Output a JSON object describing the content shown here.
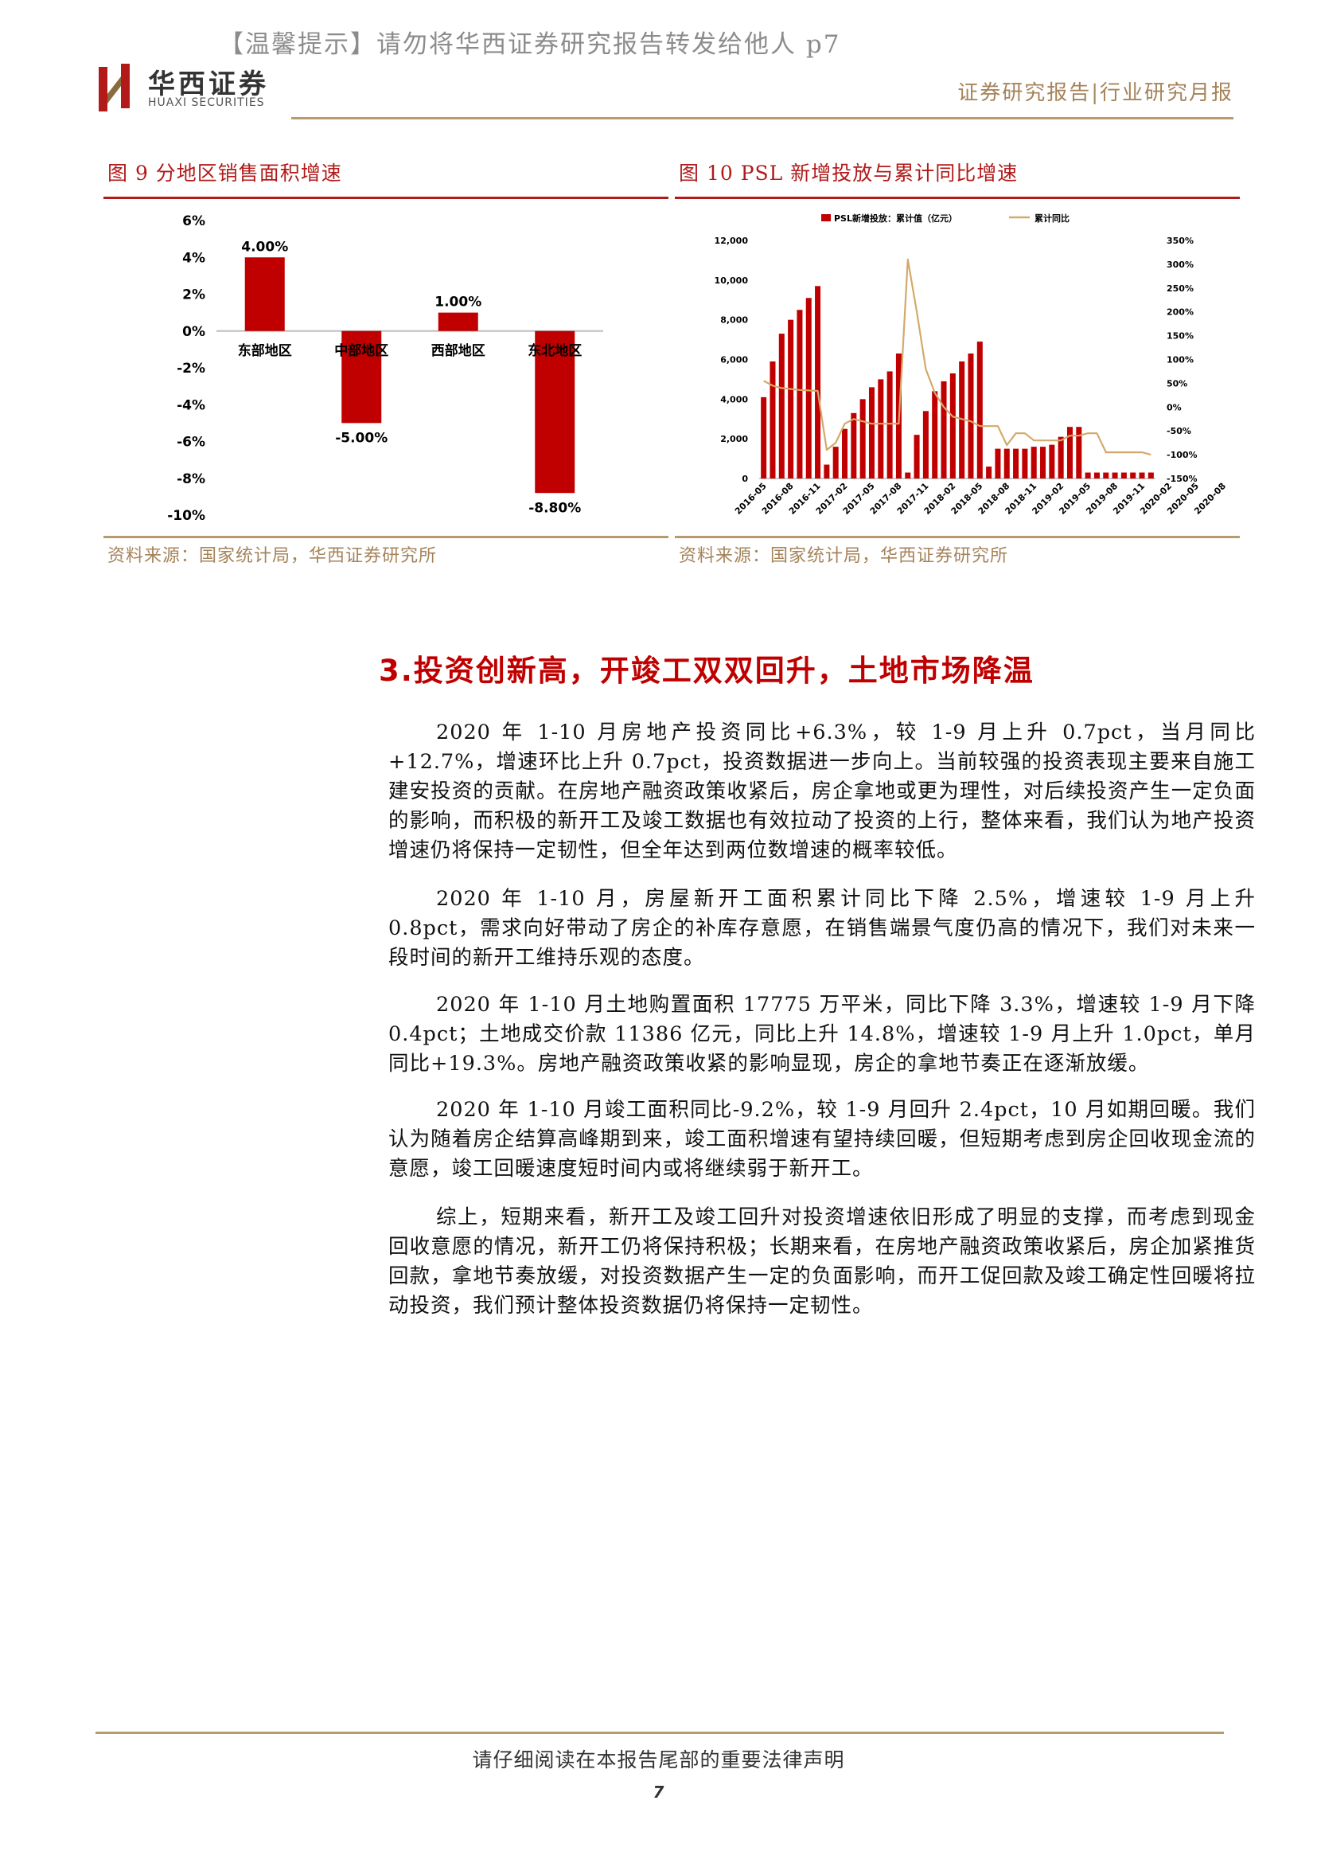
{
  "header": {
    "notice": "【温馨提示】请勿将华西证券研究报告转发给他人 p7",
    "logo_cn": "华西证券",
    "logo_en": "HUAXI SECURITIES",
    "report_type": "证券研究报告|行业研究月报"
  },
  "figures": [
    {
      "title": "图 9   分地区销售面积增速",
      "source": "资料来源：国家统计局，华西证券研究所"
    },
    {
      "title": "图 10   PSL 新增投放与累计同比增速",
      "source": "资料来源：国家统计局，华西证券研究所"
    }
  ],
  "chart_data": [
    {
      "type": "bar",
      "categories": [
        "东部地区",
        "中部地区",
        "西部地区",
        "东北地区"
      ],
      "values": [
        4.0,
        -5.0,
        1.0,
        -8.8
      ],
      "data_labels": [
        "4.00%",
        "-5.00%",
        "1.00%",
        "-8.80%"
      ],
      "ylim": [
        -10,
        6
      ],
      "yticks": [
        "6%",
        "4%",
        "2%",
        "0%",
        "-2%",
        "-4%",
        "-6%",
        "-8%",
        "-10%"
      ],
      "bar_color": "#c00000",
      "grid": false
    },
    {
      "type": "bar+line",
      "legend": [
        "PSL新增投放：累计值（亿元）",
        "累计同比"
      ],
      "legend_position": "top",
      "x_tick_labels": [
        "2016-05",
        "2016-08",
        "2016-11",
        "2017-02",
        "2017-05",
        "2017-08",
        "2017-11",
        "2018-02",
        "2018-05",
        "2018-08",
        "2018-11",
        "2019-02",
        "2019-05",
        "2019-08",
        "2019-11",
        "2020-02",
        "2020-05",
        "2020-08"
      ],
      "bar_series": {
        "name": "PSL新增投放：累计值（亿元）",
        "color": "#c00000",
        "values": [
          4100,
          5900,
          7300,
          8000,
          8500,
          9100,
          9700,
          700,
          1600,
          2500,
          3300,
          4000,
          4600,
          5000,
          5400,
          6300,
          300,
          2200,
          3400,
          4400,
          4900,
          5300,
          5900,
          6300,
          6900,
          600,
          1500,
          1500,
          1500,
          1500,
          1600,
          1600,
          1700,
          2100,
          2600,
          2600,
          300,
          300,
          300,
          300,
          300,
          300,
          300,
          300
        ],
        "ylim": [
          0,
          12000
        ],
        "yticks": [
          "12,000",
          "10,000",
          "8,000",
          "6,000",
          "4,000",
          "2,000",
          "0"
        ]
      },
      "line_series": {
        "name": "累计同比",
        "color": "#d4a96a",
        "values": [
          55,
          45,
          40,
          38,
          36,
          35,
          34,
          -90,
          -75,
          -35,
          -25,
          -30,
          -35,
          -35,
          -35,
          -35,
          310,
          200,
          80,
          30,
          0,
          -20,
          -25,
          -30,
          -40,
          -40,
          -40,
          -80,
          -55,
          -55,
          -70,
          -70,
          -70,
          -70,
          -60,
          -60,
          -55,
          -55,
          -95,
          -95,
          -95,
          -95,
          -95,
          -100
        ],
        "ylim": [
          -150,
          350
        ],
        "yticks": [
          "350%",
          "300%",
          "250%",
          "200%",
          "150%",
          "100%",
          "50%",
          "0%",
          "-50%",
          "-100%",
          "-150%"
        ]
      }
    }
  ],
  "section": {
    "heading": "3.投资创新高，开竣工双双回升，土地市场降温",
    "paragraphs": [
      "2020 年 1-10 月房地产投资同比+6.3%，较 1-9 月上升 0.7pct，当月同比+12.7%，增速环比上升 0.7pct，投资数据进一步向上。当前较强的投资表现主要来自施工建安投资的贡献。在房地产融资政策收紧后，房企拿地或更为理性，对后续投资产生一定负面的影响，而积极的新开工及竣工数据也有效拉动了投资的上行，整体来看，我们认为地产投资增速仍将保持一定韧性，但全年达到两位数增速的概率较低。",
      "2020 年 1-10 月，房屋新开工面积累计同比下降 2.5%，增速较 1-9 月上升 0.8pct，需求向好带动了房企的补库存意愿，在销售端景气度仍高的情况下，我们对未来一段时间的新开工维持乐观的态度。",
      "2020 年 1-10 月土地购置面积 17775 万平米，同比下降 3.3%，增速较 1-9 月下降 0.4pct；土地成交价款 11386 亿元，同比上升 14.8%，增速较 1-9 月上升 1.0pct，单月同比+19.3%。房地产融资政策收紧的影响显现，房企的拿地节奏正在逐渐放缓。",
      "2020 年 1-10 月竣工面积同比-9.2%，较 1-9 月回升 2.4pct，10 月如期回暖。我们认为随着房企结算高峰期到来，竣工面积增速有望持续回暖，但短期考虑到房企回收现金流的意愿，竣工回暖速度短时间内或将继续弱于新开工。",
      "综上，短期来看，新开工及竣工回升对投资增速依旧形成了明显的支撑，而考虑到现金回收意愿的情况，新开工仍将保持积极；长期来看，在房地产融资政策收紧后，房企加紧推货回款，拿地节奏放缓，对投资数据产生一定的负面影响，而开工促回款及竣工确定性回暖将拉动投资，我们预计整体投资数据仍将保持一定韧性。"
    ]
  },
  "footer": {
    "note": "请仔细阅读在本报告尾部的重要法律声明",
    "page_number": "7"
  }
}
